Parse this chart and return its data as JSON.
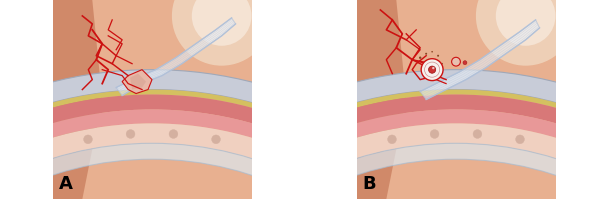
{
  "figsize": [
    6.08,
    1.99
  ],
  "dpi": 100,
  "background_color": "#ffffff",
  "label_A": "A",
  "label_B": "B",
  "label_fontsize": 13,
  "label_fontweight": "bold",
  "vessel_color": "#cc1111",
  "bg_orange": "#d4845a",
  "bg_orange_light": "#e8b090",
  "sclera_color": "#c8ccd8",
  "sclera_edge": "#a0a8b8",
  "yellow_line": "#d4c060",
  "choroid_color": "#d87878",
  "choroid_inner": "#e89898",
  "retina_color": "#f0d0c0",
  "retina_stripes": "#d4b0a0",
  "vitreous_color": "#dce8f0",
  "vitreous_edge": "#a8bcd0",
  "membrane_color": "#e8eef5",
  "membrane_edge": "#b0c0d8",
  "tear_color": "#e8b8a8",
  "hole_white": "#f5f0ec",
  "hole_red": "#cc3333",
  "operculum_color": "#e8c0b0"
}
